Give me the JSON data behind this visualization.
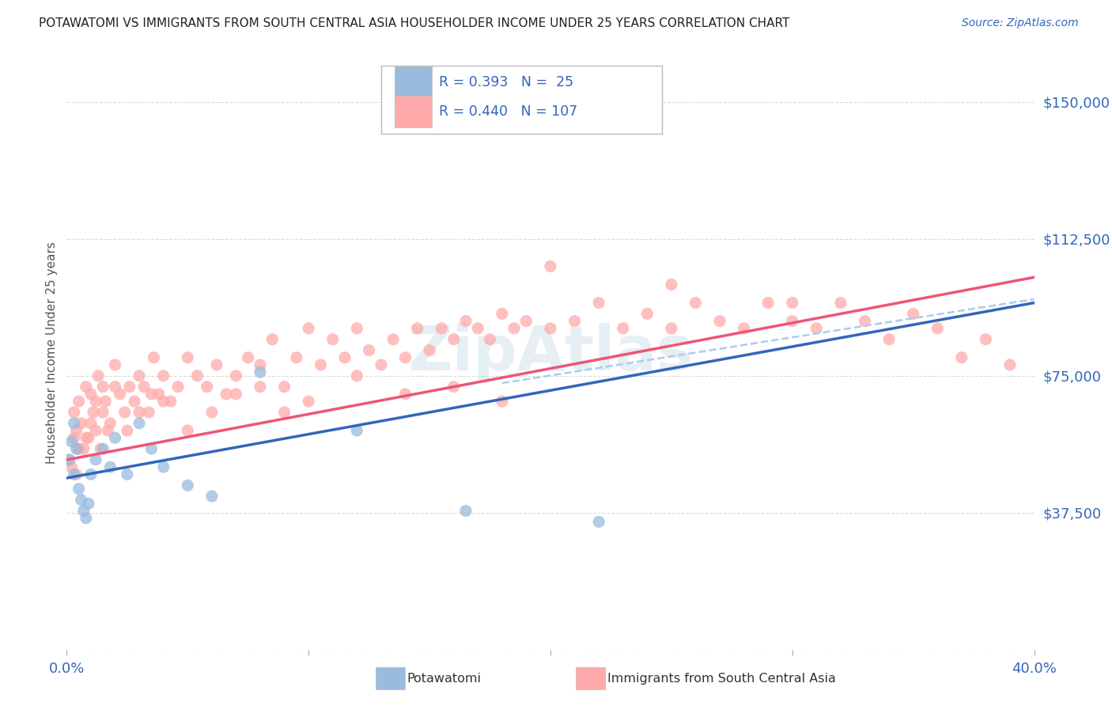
{
  "title": "POTAWATOMI VS IMMIGRANTS FROM SOUTH CENTRAL ASIA HOUSEHOLDER INCOME UNDER 25 YEARS CORRELATION CHART",
  "source": "Source: ZipAtlas.com",
  "ylabel": "Householder Income Under 25 years",
  "xlim": [
    0.0,
    0.4
  ],
  "ylim": [
    0,
    162500
  ],
  "xticks": [
    0.0,
    0.1,
    0.2,
    0.3,
    0.4
  ],
  "xticklabels": [
    "0.0%",
    "",
    "",
    "",
    "40.0%"
  ],
  "yticks": [
    0,
    37500,
    75000,
    112500,
    150000
  ],
  "yticklabels": [
    "",
    "$37,500",
    "$75,000",
    "$112,500",
    "$150,000"
  ],
  "blue_R": 0.393,
  "blue_N": 25,
  "pink_R": 0.44,
  "pink_N": 107,
  "blue_color": "#99BBDD",
  "pink_color": "#FFAAAA",
  "blue_line_color": "#3366BB",
  "pink_line_color": "#EE5577",
  "dash_line_color": "#AACCEE",
  "label_color": "#3366BB",
  "tick_color": "#3366BB",
  "grid_color": "#CCCCCC",
  "watermark_color": "#AACCDD",
  "blue_x": [
    0.001,
    0.002,
    0.003,
    0.003,
    0.004,
    0.005,
    0.006,
    0.007,
    0.008,
    0.009,
    0.01,
    0.012,
    0.015,
    0.018,
    0.02,
    0.025,
    0.03,
    0.035,
    0.04,
    0.05,
    0.06,
    0.08,
    0.12,
    0.165,
    0.22
  ],
  "blue_y": [
    52000,
    57000,
    48000,
    62000,
    55000,
    44000,
    41000,
    38000,
    36000,
    40000,
    48000,
    52000,
    55000,
    50000,
    58000,
    48000,
    62000,
    55000,
    50000,
    45000,
    42000,
    76000,
    60000,
    38000,
    35000
  ],
  "pink_x": [
    0.001,
    0.002,
    0.003,
    0.003,
    0.004,
    0.004,
    0.005,
    0.005,
    0.006,
    0.007,
    0.008,
    0.009,
    0.01,
    0.011,
    0.012,
    0.013,
    0.014,
    0.015,
    0.016,
    0.017,
    0.018,
    0.02,
    0.022,
    0.024,
    0.026,
    0.028,
    0.03,
    0.032,
    0.034,
    0.036,
    0.038,
    0.04,
    0.043,
    0.046,
    0.05,
    0.054,
    0.058,
    0.062,
    0.066,
    0.07,
    0.075,
    0.08,
    0.085,
    0.09,
    0.095,
    0.1,
    0.105,
    0.11,
    0.115,
    0.12,
    0.125,
    0.13,
    0.135,
    0.14,
    0.145,
    0.15,
    0.155,
    0.16,
    0.165,
    0.17,
    0.175,
    0.18,
    0.185,
    0.19,
    0.2,
    0.21,
    0.22,
    0.23,
    0.24,
    0.25,
    0.26,
    0.27,
    0.28,
    0.29,
    0.3,
    0.31,
    0.32,
    0.33,
    0.34,
    0.35,
    0.36,
    0.37,
    0.38,
    0.39,
    0.005,
    0.008,
    0.01,
    0.012,
    0.015,
    0.02,
    0.025,
    0.03,
    0.035,
    0.04,
    0.05,
    0.06,
    0.07,
    0.08,
    0.09,
    0.1,
    0.12,
    0.14,
    0.16,
    0.18,
    0.2,
    0.25,
    0.3
  ],
  "pink_y": [
    52000,
    50000,
    65000,
    58000,
    60000,
    48000,
    68000,
    55000,
    62000,
    55000,
    72000,
    58000,
    70000,
    65000,
    60000,
    75000,
    55000,
    72000,
    68000,
    60000,
    62000,
    78000,
    70000,
    65000,
    72000,
    68000,
    75000,
    72000,
    65000,
    80000,
    70000,
    75000,
    68000,
    72000,
    80000,
    75000,
    72000,
    78000,
    70000,
    75000,
    80000,
    78000,
    85000,
    72000,
    80000,
    88000,
    78000,
    85000,
    80000,
    88000,
    82000,
    78000,
    85000,
    80000,
    88000,
    82000,
    88000,
    85000,
    90000,
    88000,
    85000,
    92000,
    88000,
    90000,
    88000,
    90000,
    95000,
    88000,
    92000,
    88000,
    95000,
    90000,
    88000,
    95000,
    90000,
    88000,
    95000,
    90000,
    85000,
    92000,
    88000,
    80000,
    85000,
    78000,
    55000,
    58000,
    62000,
    68000,
    65000,
    72000,
    60000,
    65000,
    70000,
    68000,
    60000,
    65000,
    70000,
    72000,
    65000,
    68000,
    75000,
    70000,
    72000,
    68000,
    105000,
    100000,
    95000
  ],
  "blue_line_x0": 0.0,
  "blue_line_y0": 47000,
  "blue_line_x1": 0.4,
  "blue_line_y1": 95000,
  "pink_line_x0": 0.0,
  "pink_line_y0": 52000,
  "pink_line_x1": 0.4,
  "pink_line_y1": 102000,
  "dash_line_x0": 0.18,
  "dash_line_y0": 73000,
  "dash_line_x1": 0.4,
  "dash_line_y1": 96000,
  "legend_blue_text": "R = 0.393   N =  25",
  "legend_pink_text": "R = 0.440   N = 107",
  "bottom_label_blue": "Potawatomi",
  "bottom_label_pink": "Immigrants from South Central Asia"
}
